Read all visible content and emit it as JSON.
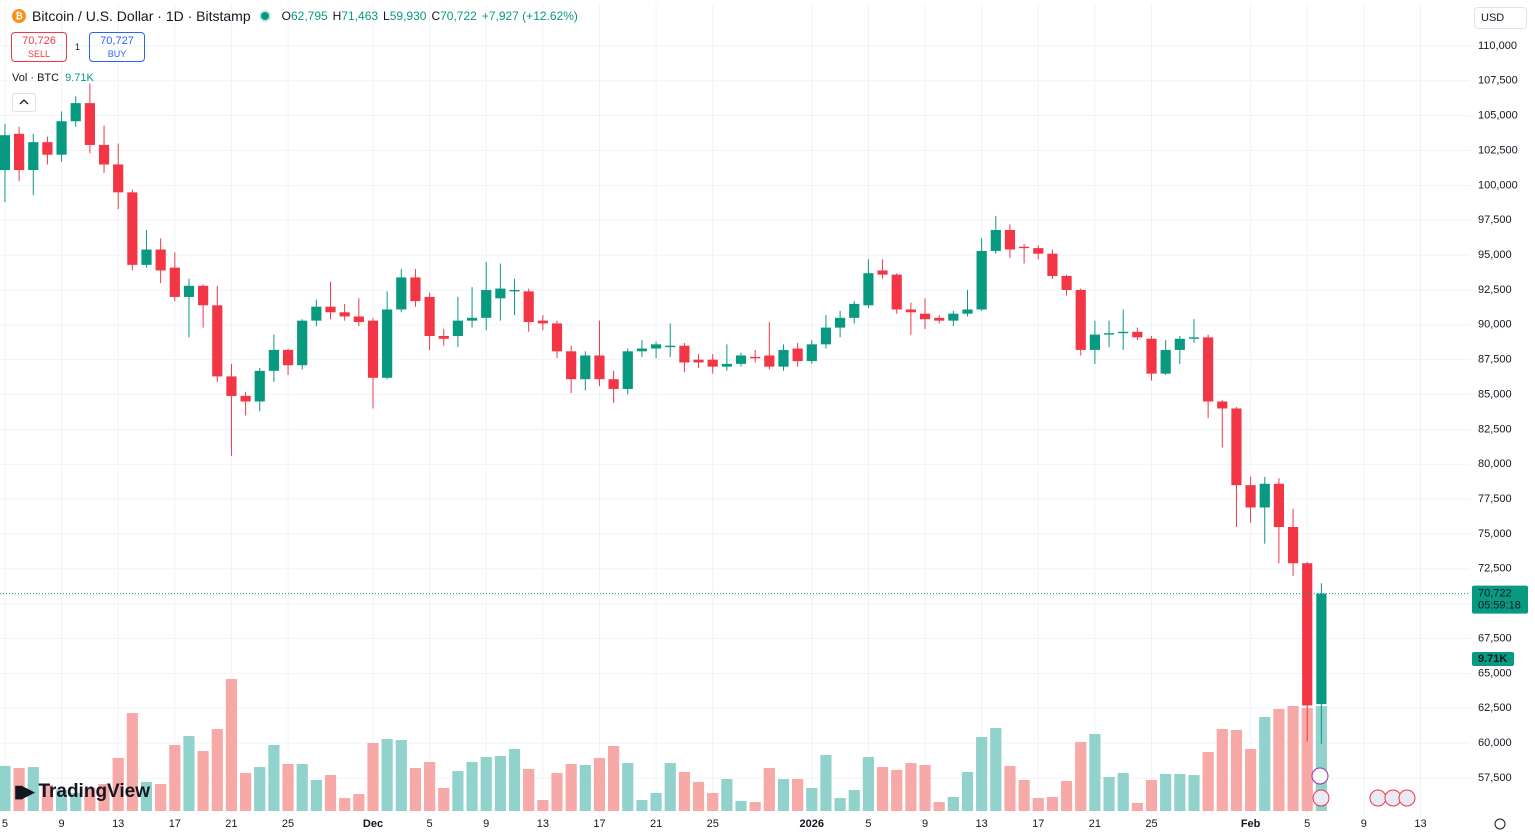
{
  "header": {
    "symbol": "Bitcoin / U.S. Dollar · 1D · Bitstamp",
    "ohlc": [
      {
        "label": "O",
        "value": 62795,
        "value_label": "62,795"
      },
      {
        "label": "H",
        "value": 71463,
        "value_label": "71,463"
      },
      {
        "label": "L",
        "value": 59930,
        "value_label": "59,930"
      },
      {
        "label": "C",
        "value": 70722,
        "value_label": "70,722"
      }
    ],
    "change": "+7,927 (+12.62%)",
    "sell": {
      "price": "70,726",
      "label": "SELL"
    },
    "spread": "1",
    "buy": {
      "price": "70,727",
      "label": "BUY"
    },
    "volume_legend": {
      "label": "Vol · BTC",
      "value": "9.71K"
    },
    "currency": "USD",
    "brand": "TradingView"
  },
  "chart_data": {
    "type": "candlestick",
    "open": [
      101100,
      103700,
      101100,
      103100,
      102200,
      104600,
      105900,
      102900,
      101500,
      99500,
      94300,
      95400,
      94100,
      92000,
      92800,
      91400,
      86300,
      84900,
      84500,
      86700,
      88200,
      87100,
      90300,
      91300,
      90900,
      90600,
      90300,
      86200,
      91100,
      93400,
      92000,
      89200,
      89200,
      90300,
      90500,
      91900,
      92400,
      92400,
      90300,
      90100,
      88100,
      86100,
      87800,
      86100,
      85400,
      88100,
      88300,
      88400,
      88500,
      87500,
      87500,
      87000,
      87200,
      87700,
      87800,
      87000,
      88300,
      87400,
      88600,
      89800,
      90500,
      91400,
      93900,
      93600,
      91100,
      90800,
      90500,
      90300,
      90800,
      91100,
      95300,
      96800,
      95600,
      95500,
      95100,
      93500,
      92500,
      88200,
      89300,
      89400,
      89500,
      89000,
      86500,
      88200,
      89000,
      89100,
      84500,
      84000,
      78500,
      76900,
      78600,
      75500,
      72900,
      62795
    ],
    "high": [
      104400,
      104200,
      103700,
      103500,
      105300,
      106400,
      107300,
      104300,
      103000,
      99700,
      96800,
      96200,
      95200,
      93300,
      92900,
      92800,
      87200,
      85200,
      86900,
      89300,
      88300,
      90400,
      91800,
      93100,
      91500,
      91900,
      90500,
      92400,
      94000,
      94000,
      92300,
      89700,
      92000,
      92700,
      94500,
      94400,
      93300,
      92600,
      90700,
      90300,
      88500,
      88100,
      90300,
      86700,
      88300,
      88900,
      88800,
      90100,
      88700,
      87900,
      87900,
      88600,
      88000,
      88200,
      90200,
      88600,
      88700,
      88900,
      90700,
      91000,
      91700,
      94700,
      94700,
      93700,
      91600,
      91900,
      90700,
      91000,
      92500,
      96200,
      97800,
      97200,
      95800,
      95700,
      95400,
      93600,
      92600,
      90300,
      90300,
      91100,
      89800,
      89200,
      88900,
      89200,
      90400,
      89300,
      84600,
      84100,
      79100,
      79100,
      79000,
      76800,
      73000,
      71463
    ],
    "low": [
      98800,
      100300,
      99300,
      101500,
      101700,
      104200,
      102300,
      100900,
      98300,
      93900,
      94100,
      93000,
      91700,
      89100,
      89800,
      85900,
      80600,
      83500,
      83800,
      85900,
      86400,
      86800,
      89900,
      90400,
      90300,
      89900,
      84000,
      86100,
      90900,
      91300,
      88200,
      88500,
      88400,
      89800,
      89600,
      90300,
      90700,
      89500,
      89600,
      87600,
      85100,
      85300,
      85600,
      84400,
      85000,
      87700,
      87600,
      87700,
      86600,
      86900,
      86500,
      86700,
      87000,
      87300,
      86800,
      86700,
      87000,
      87200,
      88300,
      89100,
      90100,
      91200,
      93300,
      90800,
      89300,
      89700,
      90100,
      89900,
      90600,
      91000,
      95100,
      94800,
      94400,
      94700,
      93300,
      92100,
      87800,
      87200,
      88400,
      88200,
      88900,
      86000,
      86400,
      87200,
      88700,
      83300,
      81200,
      75500,
      75800,
      74300,
      72900,
      72000,
      60100,
      59930
    ],
    "close": [
      103600,
      101100,
      103100,
      102200,
      104600,
      105900,
      102900,
      101500,
      99500,
      94300,
      95400,
      93900,
      92000,
      92800,
      91400,
      86300,
      84900,
      84500,
      86700,
      88200,
      87100,
      90300,
      91300,
      90900,
      90600,
      90200,
      86200,
      91100,
      93400,
      91700,
      89200,
      89000,
      90300,
      90500,
      92500,
      92600,
      92500,
      90200,
      90100,
      88100,
      86100,
      87800,
      86100,
      85400,
      88100,
      88300,
      88600,
      88500,
      87300,
      87300,
      87000,
      87200,
      87800,
      87600,
      87000,
      88200,
      87400,
      88600,
      89800,
      90500,
      91500,
      93700,
      93600,
      91100,
      90900,
      90400,
      90300,
      90800,
      91100,
      95300,
      96800,
      95400,
      95500,
      95100,
      93500,
      92500,
      88200,
      89300,
      89400,
      89500,
      89100,
      86500,
      88200,
      89000,
      89100,
      84500,
      84000,
      78500,
      76900,
      78600,
      75500,
      72900,
      62700,
      70722
    ],
    "volume": [
      4170,
      3980,
      4070,
      2410,
      1940,
      1670,
      2130,
      2500,
      4910,
      9070,
      2690,
      2500,
      6110,
      6940,
      5560,
      7590,
      12220,
      3520,
      4070,
      6110,
      4350,
      4350,
      2870,
      3330,
      1200,
      1570,
      6300,
      6670,
      6570,
      3980,
      4540,
      2130,
      3700,
      4540,
      5000,
      5090,
      5740,
      3890,
      1020,
      3520,
      4350,
      4260,
      4910,
      6020,
      4440,
      1020,
      1670,
      4440,
      3610,
      2690,
      1670,
      2960,
      930,
      830,
      3980,
      2960,
      2960,
      2130,
      5190,
      1200,
      1940,
      5000,
      4070,
      3800,
      4440,
      4260,
      830,
      1300,
      3610,
      6850,
      7690,
      4170,
      2870,
      1200,
      1300,
      2780,
      6390,
      7130,
      3150,
      3520,
      740,
      2870,
      3430,
      3430,
      3330,
      5460,
      7590,
      7500,
      5740,
      8700,
      9440,
      9720,
      9540,
      9710
    ],
    "up_color": "#089981",
    "down_color": "#f23645",
    "up_volume_color": "#92d2cc",
    "down_volume_color": "#f7a9a7",
    "countdown": "05:59:18",
    "ylim": [
      54630,
      113080
    ],
    "yticks": [
      {
        "value": 57500,
        "label": "57,500"
      },
      {
        "value": 60000,
        "label": "60,000"
      },
      {
        "value": 62500,
        "label": "62,500"
      },
      {
        "value": 65000,
        "label": "65,000"
      },
      {
        "value": 67500,
        "label": "67,500"
      },
      {
        "value": 70000,
        "label": "70,000"
      },
      {
        "value": 72500,
        "label": "72,500"
      },
      {
        "value": 75000,
        "label": "75,000"
      },
      {
        "value": 77500,
        "label": "77,500"
      },
      {
        "value": 80000,
        "label": "80,000"
      },
      {
        "value": 82500,
        "label": "82,500"
      },
      {
        "value": 85000,
        "label": "85,000"
      },
      {
        "value": 87500,
        "label": "87,500"
      },
      {
        "value": 90000,
        "label": "90,000"
      },
      {
        "value": 92500,
        "label": "92,500"
      },
      {
        "value": 95000,
        "label": "95,000"
      },
      {
        "value": 97500,
        "label": "97,500"
      },
      {
        "value": 100000,
        "label": "100,000"
      },
      {
        "value": 102500,
        "label": "102,500"
      },
      {
        "value": 105000,
        "label": "105,000"
      },
      {
        "value": 107500,
        "label": "107,500"
      },
      {
        "value": 110000,
        "label": "110,000"
      }
    ],
    "xlim": [
      -0.35,
      103.5
    ],
    "xticks": [
      {
        "value": 0,
        "label": "5"
      },
      {
        "value": 4,
        "label": "9"
      },
      {
        "value": 8,
        "label": "13"
      },
      {
        "value": 12,
        "label": "17"
      },
      {
        "value": 16,
        "label": "21"
      },
      {
        "value": 20,
        "label": "25"
      },
      {
        "value": 26,
        "label": "Dec"
      },
      {
        "value": 30,
        "label": "5"
      },
      {
        "value": 34,
        "label": "9"
      },
      {
        "value": 38,
        "label": "13"
      },
      {
        "value": 42,
        "label": "17"
      },
      {
        "value": 46,
        "label": "21"
      },
      {
        "value": 50,
        "label": "25"
      },
      {
        "value": 57,
        "label": "2026"
      },
      {
        "value": 61,
        "label": "5"
      },
      {
        "value": 65,
        "label": "9"
      },
      {
        "value": 69,
        "label": "13"
      },
      {
        "value": 73,
        "label": "17"
      },
      {
        "value": 77,
        "label": "21"
      },
      {
        "value": 81,
        "label": "25"
      },
      {
        "value": 88,
        "label": "Feb"
      },
      {
        "value": 92,
        "label": "5"
      },
      {
        "value": 96,
        "label": "9"
      },
      {
        "value": 100,
        "label": "13"
      }
    ],
    "grid": true
  }
}
